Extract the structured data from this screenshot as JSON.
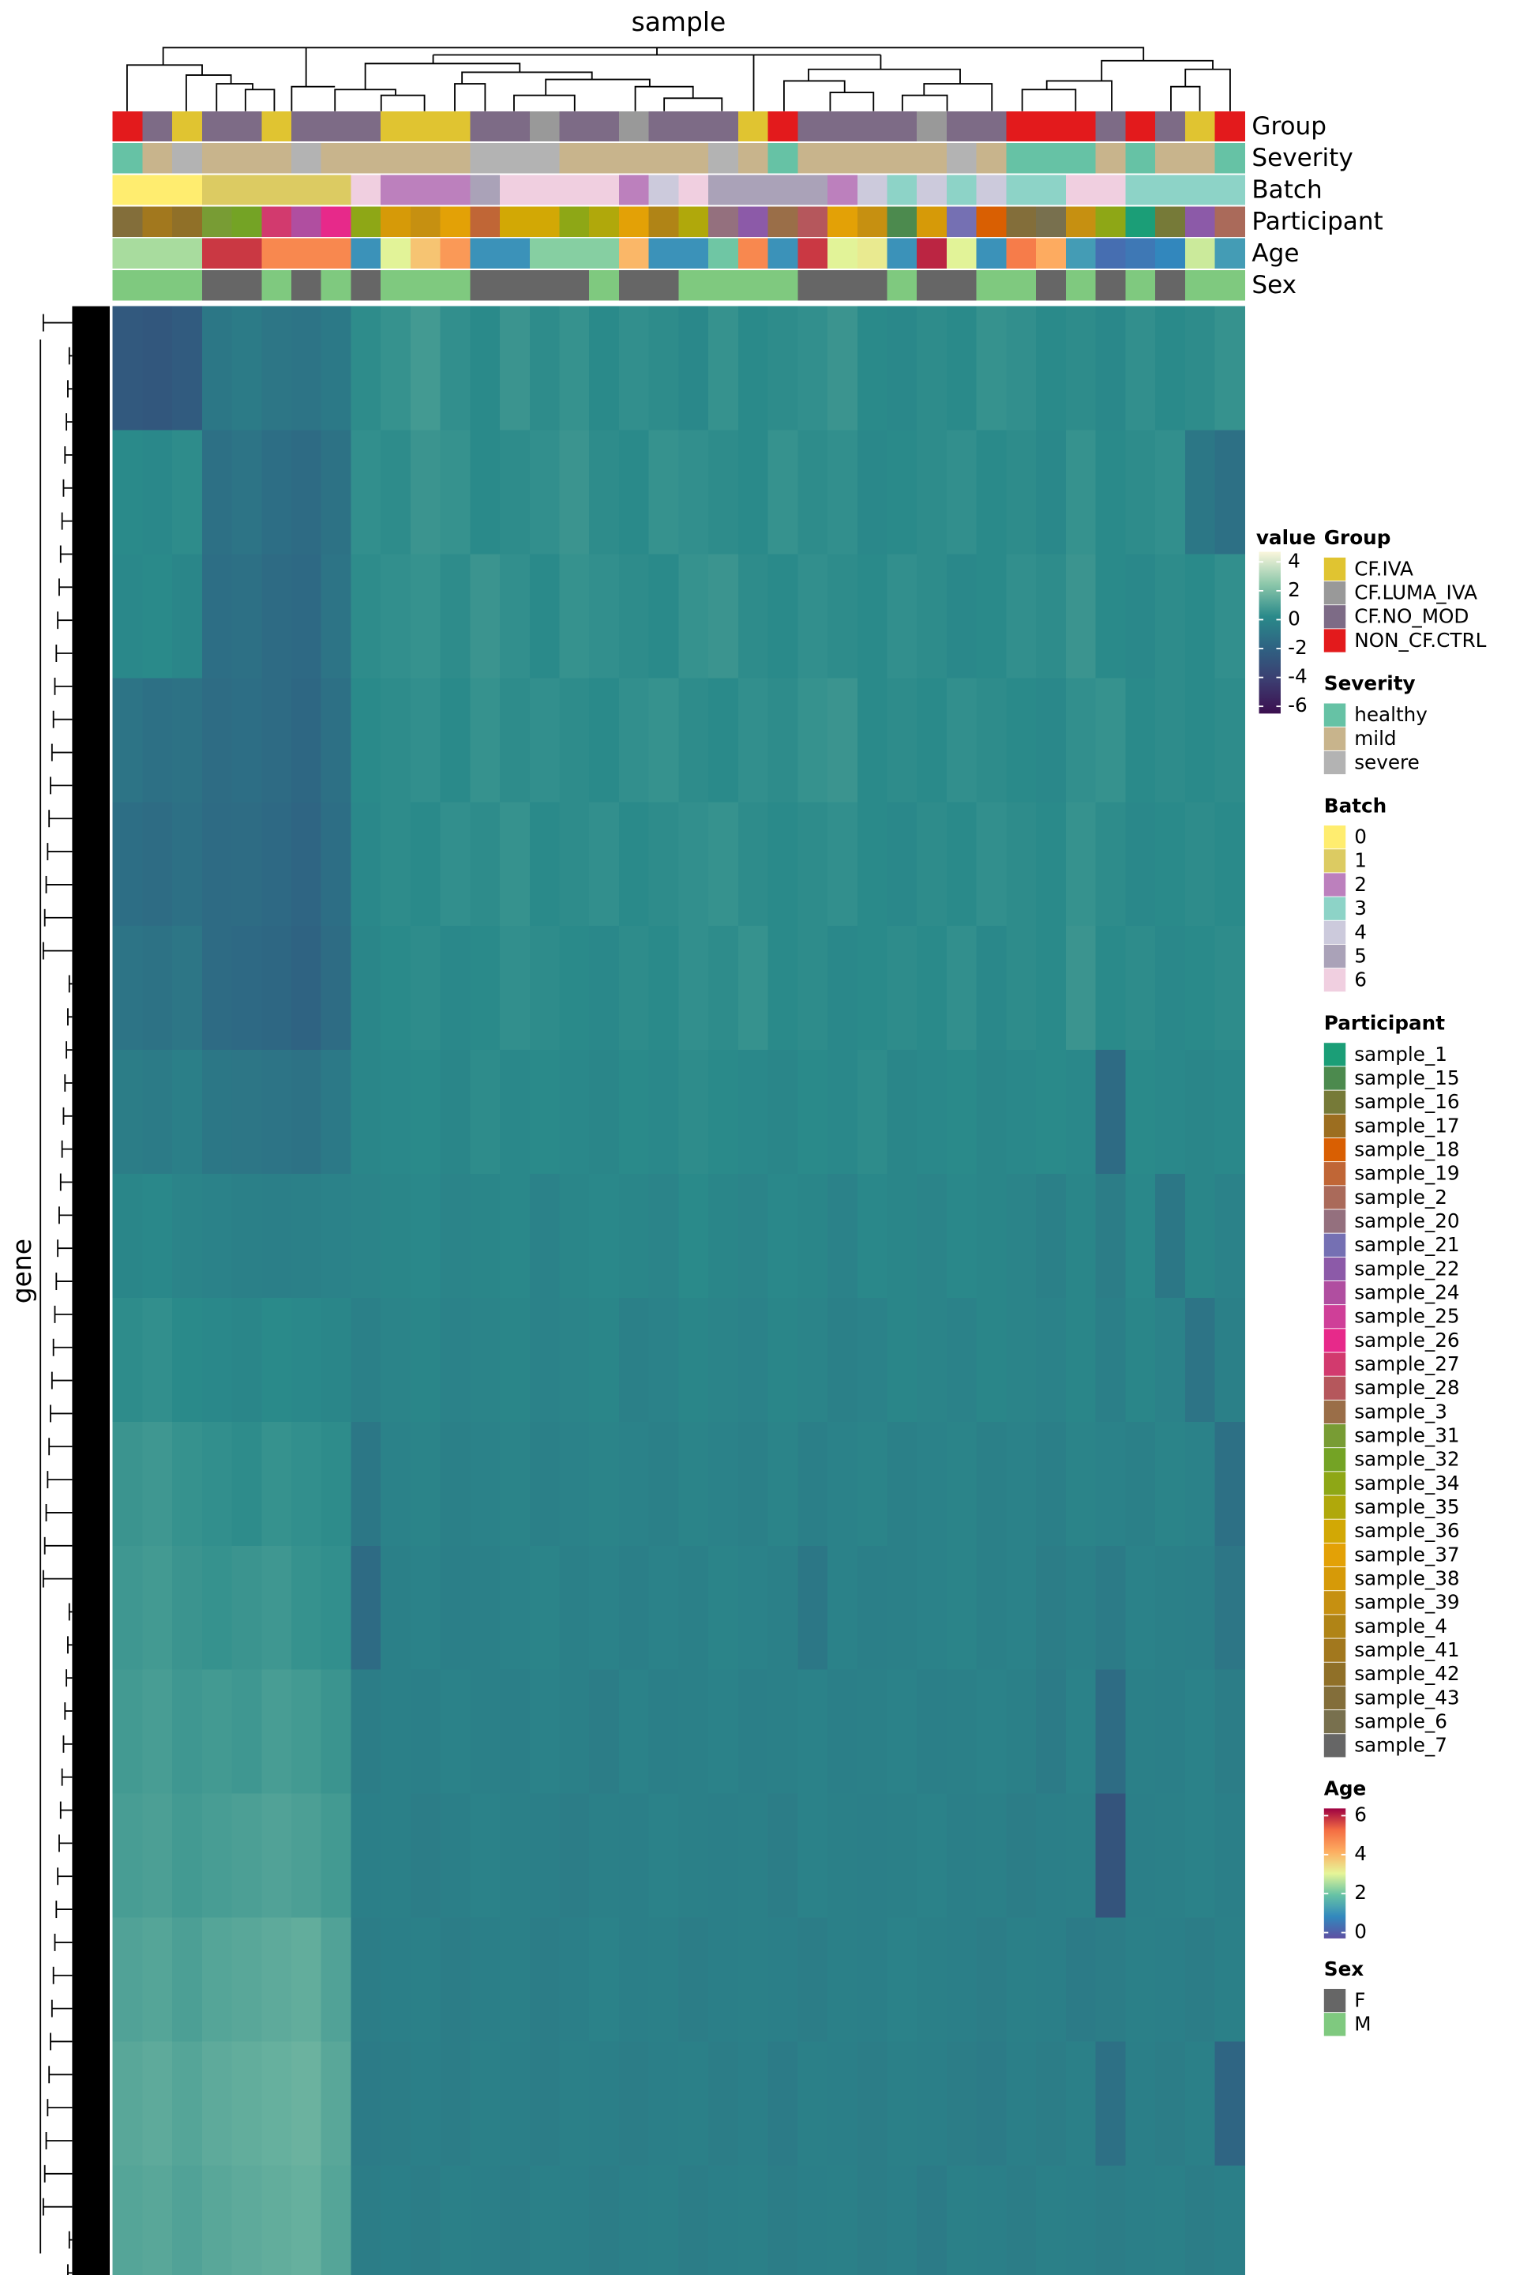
{
  "chart_data": {
    "type": "heatmap",
    "title": "sample",
    "ylabel": "gene",
    "values": [
      [
        -2.5,
        -2.6,
        -2.4,
        -0.8,
        -0.6,
        -0.9,
        -1,
        -0.7,
        0.3,
        0.5,
        0.8,
        0.4,
        0.2,
        0.6,
        0.3,
        0.5,
        0.2,
        0.4,
        0.3,
        0.1,
        0.5,
        0.2,
        0.3,
        0.4,
        0.6,
        0.2,
        0.1,
        0.3,
        0.2,
        0.5,
        0.4,
        0.2,
        0.3,
        0.1,
        0.4,
        0.2,
        0.3,
        0.5
      ],
      [
        0.2,
        0.1,
        0.3,
        -1.2,
        -1,
        -1.3,
        -1.5,
        -1.1,
        0.4,
        0.3,
        0.6,
        0.5,
        0.2,
        0.3,
        0.4,
        0.6,
        0.3,
        0.2,
        0.5,
        0.4,
        0.3,
        0.2,
        0.5,
        0.3,
        0.4,
        0.1,
        0.2,
        0.3,
        0.4,
        0.2,
        0.3,
        0.1,
        0.5,
        0.2,
        0.3,
        0.4,
        -0.8,
        -1.2
      ],
      [
        0.1,
        0.2,
        0,
        -1.3,
        -1.2,
        -1.5,
        -1.6,
        -1,
        0.3,
        0.4,
        0.5,
        0.3,
        0.6,
        0.4,
        0.2,
        0.5,
        0.4,
        0.3,
        0.2,
        0.5,
        0.6,
        0.3,
        0.2,
        0.4,
        0.3,
        0.2,
        0.4,
        0.3,
        0.1,
        0.2,
        0.4,
        0.3,
        0.6,
        0.2,
        0.1,
        0.3,
        0.2,
        0.4
      ],
      [
        -1,
        -1.2,
        -1.1,
        -1.4,
        -1.3,
        -1.5,
        -1.7,
        -1.2,
        0.2,
        0.3,
        0.4,
        0.2,
        0.5,
        0.3,
        0.4,
        0.3,
        0.2,
        0.4,
        0.5,
        0.3,
        0.2,
        0.4,
        0.3,
        0.5,
        0.6,
        0.2,
        0.3,
        0.2,
        0.4,
        0.3,
        0.2,
        0.1,
        0.4,
        0.5,
        0.2,
        0.3,
        0.2,
        0.3
      ],
      [
        -1.3,
        -1.4,
        -1.2,
        -1.5,
        -1.4,
        -1.6,
        -1.8,
        -1.3,
        0.1,
        0.3,
        0.2,
        0.4,
        0.3,
        0.5,
        0.2,
        0.3,
        0.4,
        0.2,
        0.3,
        0.4,
        0.5,
        0.3,
        0.2,
        0.3,
        0.4,
        0.2,
        0.1,
        0.3,
        0.2,
        0.4,
        0.3,
        0.2,
        0.5,
        0.3,
        0.1,
        0.2,
        0.3,
        0.2
      ],
      [
        -1,
        -1.1,
        -0.9,
        -1.5,
        -1.6,
        -1.7,
        -1.9,
        -1.4,
        0,
        0.2,
        0.3,
        0.1,
        0.2,
        0.4,
        0.3,
        0.2,
        0.1,
        0.3,
        0.2,
        0.4,
        0.3,
        0.5,
        0.2,
        0.3,
        0.1,
        0.2,
        0.3,
        0.2,
        0.4,
        0.1,
        0.3,
        0.2,
        0.6,
        0.2,
        0.3,
        0.1,
        0.2,
        0.3
      ],
      [
        -0.5,
        -0.6,
        -0.4,
        -0.8,
        -0.9,
        -1,
        -1.1,
        -0.7,
        0,
        0.1,
        0.2,
        0,
        0.3,
        0.1,
        0.2,
        0.1,
        0,
        0.2,
        0.1,
        0.3,
        0.2,
        0.1,
        0,
        0.2,
        0.1,
        0.3,
        0,
        0.1,
        0.2,
        0,
        0.1,
        0.2,
        0.1,
        -1.5,
        0.2,
        0.1,
        0,
        0.1
      ],
      [
        0,
        0.1,
        -0.1,
        -0.2,
        -0.3,
        -0.4,
        -0.3,
        -0.2,
        -0.1,
        0,
        0.1,
        -0.1,
        0,
        0.1,
        -0.2,
        0,
        0.1,
        0,
        -0.1,
        0.2,
        0,
        -0.1,
        0.1,
        0,
        -0.2,
        0.1,
        0,
        -0.1,
        0.1,
        0,
        -0.1,
        -0.3,
        0,
        -0.5,
        0.1,
        -0.8,
        0,
        -0.2
      ],
      [
        0.3,
        0.4,
        0.2,
        0.1,
        0,
        0.2,
        0.1,
        0,
        -0.3,
        -0.1,
        0,
        -0.2,
        -0.1,
        0,
        -0.2,
        -0.1,
        0,
        -0.3,
        -0.2,
        0,
        -0.1,
        -0.2,
        0,
        -0.1,
        -0.3,
        -0.2,
        0,
        -0.1,
        -0.2,
        0,
        -0.1,
        -0.2,
        0,
        -0.4,
        0,
        -0.2,
        -1,
        -0.3
      ],
      [
        0.6,
        0.7,
        0.5,
        0.4,
        0.3,
        0.5,
        0.4,
        0.3,
        -0.8,
        -0.2,
        -0.1,
        -0.3,
        -0.2,
        -0.1,
        -0.3,
        -0.2,
        -0.1,
        -0.2,
        -0.3,
        -0.1,
        -0.2,
        -0.3,
        -0.1,
        -0.4,
        -0.2,
        -0.1,
        -0.3,
        -0.2,
        -0.1,
        -0.3,
        -0.2,
        -0.4,
        -0.1,
        -0.2,
        -0.3,
        -0.1,
        -0.2,
        -1.2
      ],
      [
        0.7,
        0.8,
        0.6,
        0.5,
        0.6,
        0.7,
        0.5,
        0.4,
        -1.5,
        -0.3,
        -0.2,
        -0.4,
        -0.3,
        -0.2,
        -0.1,
        -0.3,
        -0.2,
        -0.4,
        -0.2,
        -0.3,
        -0.1,
        -0.2,
        -0.3,
        -0.8,
        -0.2,
        -0.4,
        -0.3,
        -0.2,
        -0.1,
        -0.3,
        -0.2,
        -0.5,
        -0.3,
        -0.6,
        -0.2,
        -0.3,
        -0.4,
        -0.9
      ],
      [
        0.8,
        0.9,
        0.7,
        0.8,
        0.7,
        0.9,
        0.8,
        0.6,
        -0.5,
        -0.3,
        -0.4,
        -0.2,
        -0.3,
        -0.4,
        -0.2,
        -0.3,
        -0.5,
        -0.2,
        -0.4,
        -0.3,
        -0.2,
        -0.4,
        -0.3,
        -0.2,
        -0.4,
        -0.3,
        -0.2,
        -0.4,
        -0.3,
        -0.2,
        -0.3,
        -0.6,
        -0.2,
        -1.4,
        -0.3,
        -0.4,
        -0.2,
        -0.5
      ],
      [
        0.9,
        1,
        0.8,
        0.9,
        1,
        1.1,
        1,
        0.8,
        -0.4,
        -0.3,
        -0.5,
        -0.4,
        -0.2,
        -0.3,
        -0.4,
        -0.5,
        -0.3,
        -0.4,
        -0.2,
        -0.3,
        -0.4,
        -0.3,
        -0.5,
        -0.2,
        -0.3,
        -0.4,
        -0.3,
        -0.2,
        -0.4,
        -0.3,
        -0.5,
        -0.4,
        -0.3,
        -2.8,
        -0.4,
        -0.3,
        -0.2,
        -0.4
      ],
      [
        1.1,
        1.2,
        1,
        1.2,
        1.3,
        1.4,
        1.5,
        1.1,
        -0.5,
        -0.4,
        -0.3,
        -0.5,
        -0.4,
        -0.3,
        -0.5,
        -0.4,
        -0.2,
        -0.4,
        -0.3,
        -0.5,
        -0.4,
        -0.3,
        -0.4,
        -0.5,
        -0.3,
        -0.4,
        -0.2,
        -0.3,
        -0.4,
        -0.5,
        -0.3,
        -0.4,
        -0.6,
        -0.5,
        -0.3,
        -0.4,
        -0.5,
        -0.3
      ],
      [
        1.3,
        1.4,
        1.2,
        1.4,
        1.5,
        1.6,
        1.7,
        1.3,
        -0.6,
        -0.5,
        -0.4,
        -0.5,
        -0.3,
        -0.4,
        -0.5,
        -0.3,
        -0.4,
        -0.5,
        -0.4,
        -0.3,
        -0.5,
        -0.4,
        -0.6,
        -0.3,
        -0.4,
        -0.5,
        -0.3,
        -0.4,
        -0.5,
        -0.6,
        -0.4,
        -0.5,
        -0.3,
        -1.2,
        -0.4,
        -0.5,
        -0.3,
        -1.8
      ],
      [
        1.2,
        1.3,
        1.1,
        1.3,
        1.4,
        1.5,
        1.6,
        1.2,
        -0.5,
        -0.4,
        -0.5,
        -0.3,
        -0.4,
        -0.5,
        -0.3,
        -0.4,
        -0.5,
        -0.4,
        -0.3,
        -0.5,
        -0.4,
        -0.3,
        -0.5,
        -0.4,
        -0.3,
        -0.5,
        -0.4,
        -0.6,
        -0.3,
        -0.4,
        -0.5,
        -0.3,
        -0.4,
        -0.5,
        -0.4,
        -0.3,
        -0.5,
        -0.4
      ]
    ],
    "colorbar": {
      "title": "value",
      "colors": [
        "#3b0f4f",
        "#3c3c70",
        "#2f6182",
        "#2a8a8a",
        "#8cc7aa",
        "#faf6dc"
      ],
      "lim": [
        -6.5,
        4.7
      ],
      "ticks": [
        4,
        2,
        0,
        -2,
        -4,
        -6
      ]
    },
    "annotations": [
      {
        "name": "Group",
        "levels": [
          {
            "label": "CF.IVA",
            "color": "#e0c431"
          },
          {
            "label": "CF.LUMA_IVA",
            "color": "#999999"
          },
          {
            "label": "CF.NO_MOD",
            "color": "#7d6b86"
          },
          {
            "label": "NON_CF.CTRL",
            "color": "#e31a1c"
          }
        ],
        "values": [
          "NON_CF.CTRL",
          "CF.NO_MOD",
          "CF.IVA",
          "CF.NO_MOD",
          "CF.NO_MOD",
          "CF.IVA",
          "CF.NO_MOD",
          "CF.NO_MOD",
          "CF.NO_MOD",
          "CF.IVA",
          "CF.IVA",
          "CF.IVA",
          "CF.NO_MOD",
          "CF.NO_MOD",
          "CF.LUMA_IVA",
          "CF.NO_MOD",
          "CF.NO_MOD",
          "CF.LUMA_IVA",
          "CF.NO_MOD",
          "CF.NO_MOD",
          "CF.NO_MOD",
          "CF.IVA",
          "NON_CF.CTRL",
          "CF.NO_MOD",
          "CF.NO_MOD",
          "CF.NO_MOD",
          "CF.NO_MOD",
          "CF.LUMA_IVA",
          "CF.NO_MOD",
          "CF.NO_MOD",
          "NON_CF.CTRL",
          "NON_CF.CTRL",
          "NON_CF.CTRL",
          "CF.NO_MOD",
          "NON_CF.CTRL",
          "CF.NO_MOD",
          "CF.IVA",
          "NON_CF.CTRL"
        ]
      },
      {
        "name": "Severity",
        "levels": [
          {
            "label": "healthy",
            "color": "#66c2a5"
          },
          {
            "label": "mild",
            "color": "#c8b48c"
          },
          {
            "label": "severe",
            "color": "#b3b3b3"
          }
        ],
        "values": [
          "healthy",
          "mild",
          "severe",
          "mild",
          "mild",
          "mild",
          "severe",
          "mild",
          "mild",
          "mild",
          "mild",
          "mild",
          "severe",
          "severe",
          "severe",
          "mild",
          "mild",
          "mild",
          "mild",
          "mild",
          "severe",
          "mild",
          "healthy",
          "mild",
          "mild",
          "mild",
          "mild",
          "mild",
          "severe",
          "mild",
          "healthy",
          "healthy",
          "healthy",
          "mild",
          "healthy",
          "mild",
          "mild",
          "healthy"
        ]
      },
      {
        "name": "Batch",
        "levels": [
          {
            "label": "0",
            "color": "#ffed6f"
          },
          {
            "label": "1",
            "color": "#dccb62"
          },
          {
            "label": "2",
            "color": "#bc80bd"
          },
          {
            "label": "3",
            "color": "#8dd3c7"
          },
          {
            "label": "4",
            "color": "#cccadc"
          },
          {
            "label": "5",
            "color": "#aaa2b8"
          },
          {
            "label": "6",
            "color": "#f0cfe0"
          }
        ],
        "values": [
          "0",
          "0",
          "0",
          "1",
          "1",
          "1",
          "1",
          "1",
          "6",
          "2",
          "2",
          "2",
          "5",
          "6",
          "6",
          "6",
          "6",
          "2",
          "4",
          "6",
          "5",
          "5",
          "5",
          "5",
          "2",
          "4",
          "3",
          "4",
          "3",
          "4",
          "3",
          "3",
          "6",
          "6",
          "3",
          "3",
          "3",
          "3"
        ]
      },
      {
        "name": "Participant",
        "levels": [
          {
            "label": "sample_1",
            "color": "#1b9e77"
          },
          {
            "label": "sample_15",
            "color": "#4c8a4e"
          },
          {
            "label": "sample_16",
            "color": "#767a38"
          },
          {
            "label": "sample_17",
            "color": "#9c6e20"
          },
          {
            "label": "sample_18",
            "color": "#d95f02"
          },
          {
            "label": "sample_19",
            "color": "#c06636"
          },
          {
            "label": "sample_2",
            "color": "#aa6a5a"
          },
          {
            "label": "sample_20",
            "color": "#94707e"
          },
          {
            "label": "sample_21",
            "color": "#7570b3"
          },
          {
            "label": "sample_22",
            "color": "#8c5aa8"
          },
          {
            "label": "sample_24",
            "color": "#b04ea0"
          },
          {
            "label": "sample_25",
            "color": "#cf3f98"
          },
          {
            "label": "sample_26",
            "color": "#e7298a"
          },
          {
            "label": "sample_27",
            "color": "#d23a6e"
          },
          {
            "label": "sample_28",
            "color": "#b5575c"
          },
          {
            "label": "sample_3",
            "color": "#9a6e48"
          },
          {
            "label": "sample_31",
            "color": "#789c34"
          },
          {
            "label": "sample_32",
            "color": "#74a325"
          },
          {
            "label": "sample_34",
            "color": "#8ea716"
          },
          {
            "label": "sample_35",
            "color": "#b0a80b"
          },
          {
            "label": "sample_36",
            "color": "#d2a805"
          },
          {
            "label": "sample_37",
            "color": "#e3a106"
          },
          {
            "label": "sample_38",
            "color": "#d69a08"
          },
          {
            "label": "sample_39",
            "color": "#c69011"
          },
          {
            "label": "sample_4",
            "color": "#b08416"
          },
          {
            "label": "sample_41",
            "color": "#a2781e"
          },
          {
            "label": "sample_42",
            "color": "#907028"
          },
          {
            "label": "sample_43",
            "color": "#836e3a"
          },
          {
            "label": "sample_6",
            "color": "#78704e"
          },
          {
            "label": "sample_7",
            "color": "#666666"
          }
        ],
        "values": [
          "sample_43",
          "sample_41",
          "sample_42",
          "sample_31",
          "sample_32",
          "sample_27",
          "sample_24",
          "sample_26",
          "sample_34",
          "sample_38",
          "sample_39",
          "sample_37",
          "sample_19",
          "sample_36",
          "sample_36",
          "sample_34",
          "sample_35",
          "sample_37",
          "sample_4",
          "sample_35",
          "sample_20",
          "sample_22",
          "sample_3",
          "sample_28",
          "sample_37",
          "sample_39",
          "sample_15",
          "sample_38",
          "sample_21",
          "sample_18",
          "sample_43",
          "sample_6",
          "sample_39",
          "sample_34",
          "sample_1",
          "sample_16",
          "sample_22",
          "sample_2"
        ]
      },
      {
        "name": "Age",
        "colors": [
          "#5e4fa2",
          "#3288bd",
          "#66c2a5",
          "#e6f598",
          "#fdae61",
          "#f46d43",
          "#9e0142"
        ],
        "lim": [
          -0.3,
          6.37
        ],
        "ticks": [
          6,
          4,
          2,
          0
        ],
        "values": [
          2.5,
          2.5,
          2.5,
          5.8,
          5.8,
          4.8,
          4.8,
          4.8,
          1,
          3,
          3.8,
          4.5,
          1,
          1,
          2.2,
          2.2,
          2.2,
          4,
          1,
          1,
          2,
          4.8,
          1,
          5.8,
          3,
          3.2,
          1,
          6,
          3,
          1,
          5,
          4.2,
          1.2,
          0.3,
          0.5,
          0.8,
          2.8,
          1.2
        ]
      },
      {
        "name": "Sex",
        "levels": [
          {
            "label": "F",
            "color": "#666666"
          },
          {
            "label": "M",
            "color": "#7fc97f"
          }
        ],
        "values": [
          "M",
          "M",
          "M",
          "F",
          "F",
          "M",
          "F",
          "M",
          "F",
          "M",
          "M",
          "M",
          "F",
          "F",
          "F",
          "F",
          "M",
          "F",
          "F",
          "M",
          "M",
          "M",
          "M",
          "F",
          "F",
          "F",
          "M",
          "F",
          "F",
          "M",
          "M",
          "F",
          "M",
          "F",
          "M",
          "F",
          "M",
          "M"
        ]
      }
    ]
  }
}
